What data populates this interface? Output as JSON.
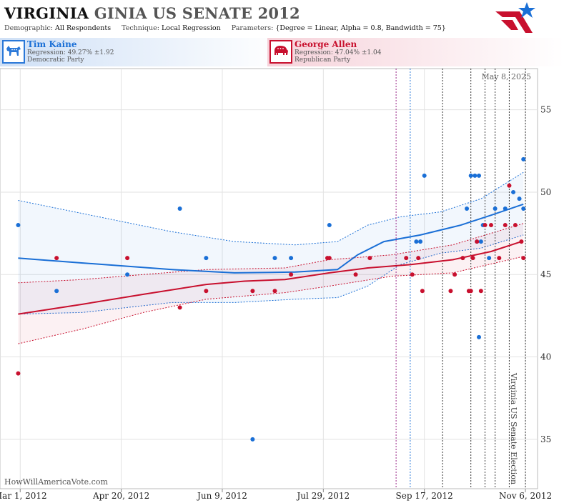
{
  "header": {
    "title_bold": "VIRGINIA",
    "title_rest": "GINIA US SENATE 2012",
    "params": [
      {
        "key": "Demographic:",
        "value": "All Respondents"
      },
      {
        "key": "Technique:",
        "value": "Local Regression"
      },
      {
        "key": "Parameters:",
        "value": "{Degree = Linear, Alpha = 0.8, Bandwidth = 75}"
      }
    ]
  },
  "candidates": {
    "dem": {
      "name": "Tim Kaine",
      "regression": "Regression: 49.27% ±1.92",
      "party": "Democratic Party",
      "color": "#1a6fd6",
      "icon": "donkey-icon"
    },
    "rep": {
      "name": "George Allen",
      "regression": "Regression: 47.04% ±1.04",
      "party": "Republican Party",
      "color": "#c8102e",
      "icon": "elephant-icon"
    }
  },
  "plot": {
    "date_label": "May 8, 2025",
    "election_label": "Virginia US Senate Election",
    "watermark": "HowWillAmericaVote.com"
  },
  "chart_data": {
    "type": "scatter",
    "title": "",
    "xlabel": "",
    "ylabel": "",
    "x_type": "date",
    "ylim": [
      32,
      57.5
    ],
    "xlim": [
      "2012-02-20",
      "2012-11-12"
    ],
    "y_ticks": [
      35,
      40,
      45,
      50,
      55
    ],
    "x_ticks": [
      {
        "date": "2012-03-01",
        "label": "Mar 1, 2012"
      },
      {
        "date": "2012-04-20",
        "label": "Apr 20, 2012"
      },
      {
        "date": "2012-06-09",
        "label": "Jun 9, 2012"
      },
      {
        "date": "2012-07-29",
        "label": "Jul 29, 2012"
      },
      {
        "date": "2012-09-17",
        "label": "Sep 17, 2012"
      },
      {
        "date": "2012-11-06",
        "label": "Nov 6, 2012"
      }
    ],
    "grid": true,
    "vertical_markers": [
      {
        "date": "2012-09-03",
        "color": "#9b2a8a"
      },
      {
        "date": "2012-09-10",
        "color": "#2a78d8"
      },
      {
        "date": "2012-09-26",
        "color": "#333333"
      },
      {
        "date": "2012-10-10",
        "color": "#333333"
      },
      {
        "date": "2012-10-17",
        "color": "#333333"
      },
      {
        "date": "2012-10-22",
        "color": "#333333"
      },
      {
        "date": "2012-10-29",
        "color": "#333333"
      },
      {
        "date": "2012-11-06",
        "color": "#333333"
      }
    ],
    "series": [
      {
        "name": "Tim Kaine",
        "color": "#1a6fd6",
        "points": [
          [
            "2012-02-29",
            48
          ],
          [
            "2012-03-19",
            44
          ],
          [
            "2012-04-23",
            45
          ],
          [
            "2012-05-19",
            49
          ],
          [
            "2012-06-01",
            46
          ],
          [
            "2012-06-24",
            35
          ],
          [
            "2012-07-05",
            46
          ],
          [
            "2012-07-13",
            46
          ],
          [
            "2012-08-01",
            48
          ],
          [
            "2012-09-17",
            51
          ],
          [
            "2012-09-13",
            47
          ],
          [
            "2012-09-15",
            47
          ],
          [
            "2012-10-08",
            49
          ],
          [
            "2012-10-10",
            51
          ],
          [
            "2012-10-12",
            51
          ],
          [
            "2012-10-14",
            51
          ],
          [
            "2012-10-13",
            47
          ],
          [
            "2012-10-15",
            47
          ],
          [
            "2012-10-16",
            48
          ],
          [
            "2012-10-14",
            41.2
          ],
          [
            "2012-10-19",
            46
          ],
          [
            "2012-10-22",
            49
          ],
          [
            "2012-10-27",
            49
          ],
          [
            "2012-10-31",
            50
          ],
          [
            "2012-11-03",
            49.6
          ],
          [
            "2012-11-05",
            52
          ],
          [
            "2012-11-05",
            49
          ]
        ],
        "trend": [
          [
            "2012-02-29",
            46.0
          ],
          [
            "2012-04-01",
            45.7
          ],
          [
            "2012-05-15",
            45.3
          ],
          [
            "2012-06-15",
            45.1
          ],
          [
            "2012-07-15",
            45.15
          ],
          [
            "2012-08-05",
            45.3
          ],
          [
            "2012-08-15",
            46.2
          ],
          [
            "2012-08-28",
            47.0
          ],
          [
            "2012-09-15",
            47.4
          ],
          [
            "2012-10-05",
            48.0
          ],
          [
            "2012-10-20",
            48.6
          ],
          [
            "2012-11-05",
            49.27
          ]
        ],
        "band_upper": [
          [
            "2012-02-29",
            49.5
          ],
          [
            "2012-04-01",
            48.7
          ],
          [
            "2012-05-15",
            47.6
          ],
          [
            "2012-06-15",
            47.0
          ],
          [
            "2012-07-15",
            46.8
          ],
          [
            "2012-08-05",
            47.0
          ],
          [
            "2012-08-20",
            48.0
          ],
          [
            "2012-09-05",
            48.5
          ],
          [
            "2012-09-25",
            48.8
          ],
          [
            "2012-10-15",
            49.6
          ],
          [
            "2012-11-05",
            51.2
          ]
        ],
        "band_lower": [
          [
            "2012-02-29",
            42.6
          ],
          [
            "2012-04-01",
            42.7
          ],
          [
            "2012-05-15",
            43.3
          ],
          [
            "2012-06-15",
            43.3
          ],
          [
            "2012-07-15",
            43.5
          ],
          [
            "2012-08-05",
            43.6
          ],
          [
            "2012-08-20",
            44.3
          ],
          [
            "2012-09-05",
            45.6
          ],
          [
            "2012-09-25",
            46.3
          ],
          [
            "2012-10-15",
            46.6
          ],
          [
            "2012-11-05",
            47.4
          ]
        ]
      },
      {
        "name": "George Allen",
        "color": "#c8102e",
        "points": [
          [
            "2012-02-29",
            39
          ],
          [
            "2012-03-19",
            46
          ],
          [
            "2012-04-23",
            46
          ],
          [
            "2012-05-19",
            43
          ],
          [
            "2012-06-01",
            44
          ],
          [
            "2012-06-24",
            44
          ],
          [
            "2012-07-05",
            44
          ],
          [
            "2012-07-13",
            45
          ],
          [
            "2012-07-31",
            46
          ],
          [
            "2012-08-01",
            46
          ],
          [
            "2012-08-14",
            45
          ],
          [
            "2012-08-21",
            46
          ],
          [
            "2012-09-08",
            46
          ],
          [
            "2012-09-11",
            45
          ],
          [
            "2012-09-14",
            46
          ],
          [
            "2012-09-16",
            44
          ],
          [
            "2012-09-30",
            44
          ],
          [
            "2012-10-02",
            45
          ],
          [
            "2012-10-06",
            46
          ],
          [
            "2012-10-09",
            44
          ],
          [
            "2012-10-10",
            44
          ],
          [
            "2012-10-11",
            46
          ],
          [
            "2012-10-13",
            47
          ],
          [
            "2012-10-15",
            44
          ],
          [
            "2012-10-17",
            48
          ],
          [
            "2012-10-20",
            48
          ],
          [
            "2012-10-24",
            46
          ],
          [
            "2012-10-27",
            48
          ],
          [
            "2012-10-29",
            50.4
          ],
          [
            "2012-11-01",
            48
          ],
          [
            "2012-11-04",
            47
          ],
          [
            "2012-11-05",
            46
          ]
        ],
        "trend": [
          [
            "2012-02-29",
            42.6
          ],
          [
            "2012-04-01",
            43.2
          ],
          [
            "2012-05-01",
            43.8
          ],
          [
            "2012-06-01",
            44.4
          ],
          [
            "2012-06-20",
            44.6
          ],
          [
            "2012-07-10",
            44.7
          ],
          [
            "2012-08-01",
            45.1
          ],
          [
            "2012-08-20",
            45.4
          ],
          [
            "2012-09-10",
            45.6
          ],
          [
            "2012-10-01",
            45.9
          ],
          [
            "2012-10-20",
            46.4
          ],
          [
            "2012-11-05",
            47.04
          ]
        ],
        "band_upper": [
          [
            "2012-02-29",
            44.5
          ],
          [
            "2012-04-01",
            44.7
          ],
          [
            "2012-05-01",
            45.0
          ],
          [
            "2012-06-01",
            45.3
          ],
          [
            "2012-07-10",
            45.4
          ],
          [
            "2012-08-01",
            45.9
          ],
          [
            "2012-09-01",
            46.2
          ],
          [
            "2012-10-01",
            46.8
          ],
          [
            "2012-11-05",
            48.1
          ]
        ],
        "band_lower": [
          [
            "2012-02-29",
            40.8
          ],
          [
            "2012-04-01",
            41.7
          ],
          [
            "2012-05-01",
            42.7
          ],
          [
            "2012-06-01",
            43.5
          ],
          [
            "2012-07-10",
            43.9
          ],
          [
            "2012-08-01",
            44.3
          ],
          [
            "2012-09-01",
            44.9
          ],
          [
            "2012-10-01",
            45.1
          ],
          [
            "2012-11-05",
            46.1
          ]
        ]
      }
    ]
  }
}
